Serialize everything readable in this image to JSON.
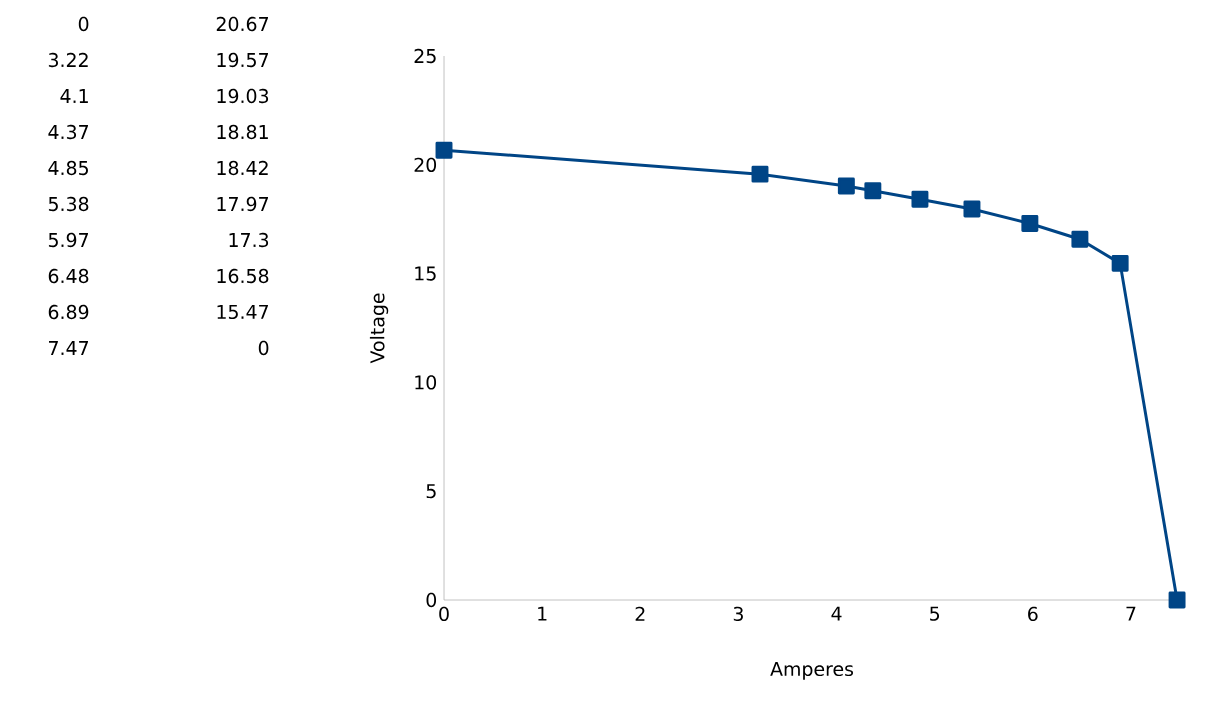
{
  "chart_data": {
    "type": "line",
    "xlabel": "Amperes",
    "ylabel": "Voltage",
    "x": [
      0,
      3.22,
      4.1,
      4.37,
      4.85,
      5.38,
      5.97,
      6.48,
      6.89,
      7.47
    ],
    "series": [
      {
        "color": "#004586",
        "values": [
          20.67,
          19.57,
          19.03,
          18.81,
          18.42,
          17.97,
          17.3,
          16.58,
          15.47,
          0
        ]
      }
    ],
    "xlim": [
      0,
      7.5
    ],
    "xticks": [
      0,
      1,
      2,
      3,
      4,
      5,
      6,
      7
    ],
    "ylim": [
      0,
      25
    ],
    "yticks": [
      0,
      5,
      10,
      15,
      20,
      25
    ],
    "marker": "square",
    "line_style": "solid",
    "annotations": [
      "0",
      "20.67",
      "3.22",
      "19.57",
      "4.1",
      "19.03",
      "4.37",
      "18.81",
      "4.85",
      "18.42",
      "5.38",
      "17.97",
      "5.97",
      "17.3",
      "6.48",
      "16.58",
      "6.89",
      "15.47",
      "7.47",
      "0"
    ]
  }
}
